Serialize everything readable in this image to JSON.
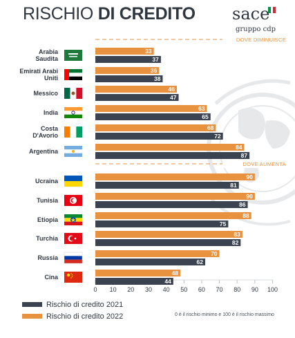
{
  "header": {
    "title_light": "RISCHIO ",
    "title_bold": "DI CREDITO"
  },
  "logo": {
    "brand": "sace",
    "sub": "gruppo cdp",
    "flag_colors": [
      "#009246",
      "#ffffff",
      "#ce2b37"
    ]
  },
  "colors": {
    "bar_2022": "#e8913e",
    "bar_2021": "#3b4350",
    "divider": "#e8913e",
    "globe": "#e6e8ea"
  },
  "chart_data": {
    "type": "bar",
    "orientation": "horizontal",
    "categories": [
      "Arabia\nSaudita",
      "Emirati Arabi\nUniti",
      "Messico",
      "India",
      "Costa\nD'Avorio",
      "Argentina",
      "Ucraina",
      "Tunisia",
      "Etiopia",
      "Turchia",
      "Russia",
      "Cina"
    ],
    "flags": [
      "flag-saudi-arabia",
      "flag-uae",
      "flag-mexico",
      "flag-india",
      "flag-ivory-coast",
      "flag-argentina",
      "flag-ukraine",
      "flag-tunisia",
      "flag-ethiopia",
      "flag-turkey",
      "flag-russia",
      "flag-china"
    ],
    "series": [
      {
        "name": "Rischio di credito 2022",
        "values": [
          33,
          36,
          46,
          63,
          68,
          84,
          90,
          90,
          88,
          83,
          70,
          48
        ]
      },
      {
        "name": "Rischio di credito 2021",
        "values": [
          37,
          38,
          47,
          65,
          72,
          87,
          81,
          86,
          75,
          82,
          62,
          44
        ]
      }
    ],
    "group_labels": [
      "DOVE DIMINUISCE",
      "DOVE AUMENTA"
    ],
    "xlim": [
      0,
      100
    ],
    "xticks": [
      "0",
      "10",
      "20",
      "30",
      "40",
      "50",
      "60",
      "70",
      "80",
      "90",
      "100"
    ],
    "legend_position": "bottom-left",
    "note": "0 è il rischio minimo e 100 è il rischio massimo"
  }
}
